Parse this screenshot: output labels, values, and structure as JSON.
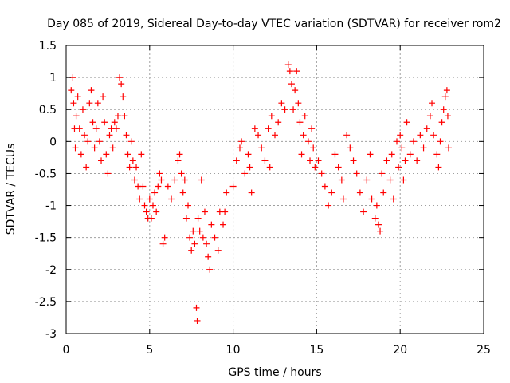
{
  "chart_data": {
    "type": "scatter",
    "title": "Day 085 of 2019, Sidereal Day-to-day VTEC variation (SDTVAR) for receiver rom2",
    "xlabel": "GPS time / hours",
    "ylabel": "SDTVAR / TECUs",
    "xlim": [
      0,
      25
    ],
    "ylim": [
      -3,
      1.5
    ],
    "xticks": [
      "0",
      "5",
      "10",
      "15",
      "20",
      "25"
    ],
    "yticks": [
      "1.5",
      "1",
      "0.5",
      "0",
      "-0.5",
      "-1",
      "-1.5",
      "-2",
      "-2.5",
      "-3"
    ],
    "grid": true,
    "marker": "+",
    "color": "#ff0000",
    "series": [
      {
        "name": "SDTVAR",
        "points": [
          [
            0.3,
            0.8
          ],
          [
            0.4,
            1.0
          ],
          [
            0.45,
            0.6
          ],
          [
            0.5,
            0.2
          ],
          [
            0.55,
            -0.1
          ],
          [
            0.6,
            0.4
          ],
          [
            0.7,
            0.7
          ],
          [
            0.8,
            0.2
          ],
          [
            0.9,
            -0.2
          ],
          [
            1.0,
            0.5
          ],
          [
            1.1,
            0.1
          ],
          [
            1.2,
            -0.4
          ],
          [
            1.3,
            0.0
          ],
          [
            1.4,
            0.6
          ],
          [
            1.5,
            0.8
          ],
          [
            1.6,
            0.3
          ],
          [
            1.7,
            -0.1
          ],
          [
            1.8,
            0.2
          ],
          [
            1.9,
            0.6
          ],
          [
            2.0,
            0.0
          ],
          [
            2.1,
            -0.3
          ],
          [
            2.2,
            0.7
          ],
          [
            2.3,
            0.3
          ],
          [
            2.4,
            -0.2
          ],
          [
            2.5,
            -0.5
          ],
          [
            2.6,
            0.1
          ],
          [
            2.7,
            0.2
          ],
          [
            2.8,
            -0.1
          ],
          [
            2.9,
            0.3
          ],
          [
            3.0,
            0.2
          ],
          [
            3.1,
            0.4
          ],
          [
            3.2,
            1.0
          ],
          [
            3.3,
            0.9
          ],
          [
            3.4,
            0.7
          ],
          [
            3.5,
            0.4
          ],
          [
            3.6,
            0.1
          ],
          [
            3.7,
            -0.2
          ],
          [
            3.8,
            -0.4
          ],
          [
            3.9,
            0.0
          ],
          [
            4.0,
            -0.3
          ],
          [
            4.1,
            -0.6
          ],
          [
            4.2,
            -0.4
          ],
          [
            4.3,
            -0.7
          ],
          [
            4.4,
            -0.9
          ],
          [
            4.5,
            -0.2
          ],
          [
            4.6,
            -0.7
          ],
          [
            4.7,
            -1.0
          ],
          [
            4.8,
            -1.1
          ],
          [
            4.9,
            -1.2
          ],
          [
            5.0,
            -0.9
          ],
          [
            5.1,
            -1.2
          ],
          [
            5.2,
            -1.0
          ],
          [
            5.3,
            -0.8
          ],
          [
            5.4,
            -1.1
          ],
          [
            5.5,
            -0.7
          ],
          [
            5.6,
            -0.5
          ],
          [
            5.7,
            -0.6
          ],
          [
            5.8,
            -1.6
          ],
          [
            5.9,
            -1.5
          ],
          [
            6.1,
            -0.7
          ],
          [
            6.3,
            -0.9
          ],
          [
            6.5,
            -0.6
          ],
          [
            6.7,
            -0.3
          ],
          [
            6.8,
            -0.2
          ],
          [
            6.9,
            -0.5
          ],
          [
            7.0,
            -0.8
          ],
          [
            7.1,
            -0.6
          ],
          [
            7.2,
            -1.2
          ],
          [
            7.3,
            -1.0
          ],
          [
            7.4,
            -1.5
          ],
          [
            7.5,
            -1.7
          ],
          [
            7.6,
            -1.4
          ],
          [
            7.7,
            -1.6
          ],
          [
            7.8,
            -2.6
          ],
          [
            7.85,
            -2.8
          ],
          [
            7.9,
            -1.2
          ],
          [
            8.0,
            -1.4
          ],
          [
            8.1,
            -0.6
          ],
          [
            8.2,
            -1.5
          ],
          [
            8.3,
            -1.1
          ],
          [
            8.4,
            -1.6
          ],
          [
            8.5,
            -1.8
          ],
          [
            8.6,
            -2.0
          ],
          [
            8.7,
            -1.3
          ],
          [
            8.9,
            -1.5
          ],
          [
            9.1,
            -1.7
          ],
          [
            9.2,
            -1.1
          ],
          [
            9.4,
            -1.3
          ],
          [
            9.5,
            -1.1
          ],
          [
            9.6,
            -0.8
          ],
          [
            10.0,
            -0.7
          ],
          [
            10.2,
            -0.3
          ],
          [
            10.4,
            -0.1
          ],
          [
            10.5,
            0.0
          ],
          [
            10.7,
            -0.5
          ],
          [
            10.9,
            -0.2
          ],
          [
            11.0,
            -0.4
          ],
          [
            11.1,
            -0.8
          ],
          [
            11.3,
            0.2
          ],
          [
            11.5,
            0.1
          ],
          [
            11.7,
            -0.1
          ],
          [
            11.9,
            -0.3
          ],
          [
            12.1,
            0.2
          ],
          [
            12.2,
            -0.4
          ],
          [
            12.3,
            0.4
          ],
          [
            12.5,
            0.1
          ],
          [
            12.7,
            0.3
          ],
          [
            12.9,
            0.6
          ],
          [
            13.1,
            0.5
          ],
          [
            13.3,
            1.2
          ],
          [
            13.4,
            1.1
          ],
          [
            13.5,
            0.9
          ],
          [
            13.6,
            0.5
          ],
          [
            13.7,
            0.8
          ],
          [
            13.8,
            1.1
          ],
          [
            13.9,
            0.6
          ],
          [
            14.0,
            0.3
          ],
          [
            14.1,
            -0.2
          ],
          [
            14.2,
            0.1
          ],
          [
            14.3,
            0.4
          ],
          [
            14.5,
            0.0
          ],
          [
            14.6,
            -0.3
          ],
          [
            14.7,
            0.2
          ],
          [
            14.8,
            -0.1
          ],
          [
            14.9,
            -0.4
          ],
          [
            15.1,
            -0.3
          ],
          [
            15.3,
            -0.5
          ],
          [
            15.5,
            -0.7
          ],
          [
            15.7,
            -1.0
          ],
          [
            15.9,
            -0.8
          ],
          [
            16.1,
            -0.2
          ],
          [
            16.3,
            -0.4
          ],
          [
            16.5,
            -0.6
          ],
          [
            16.6,
            -0.9
          ],
          [
            16.8,
            0.1
          ],
          [
            17.0,
            -0.1
          ],
          [
            17.2,
            -0.3
          ],
          [
            17.4,
            -0.5
          ],
          [
            17.6,
            -0.8
          ],
          [
            17.8,
            -1.1
          ],
          [
            18.0,
            -0.6
          ],
          [
            18.2,
            -0.2
          ],
          [
            18.3,
            -0.9
          ],
          [
            18.5,
            -1.2
          ],
          [
            18.6,
            -1.0
          ],
          [
            18.7,
            -1.3
          ],
          [
            18.8,
            -1.4
          ],
          [
            18.9,
            -0.5
          ],
          [
            19.0,
            -0.8
          ],
          [
            19.2,
            -0.3
          ],
          [
            19.4,
            -0.6
          ],
          [
            19.5,
            -0.2
          ],
          [
            19.6,
            -0.9
          ],
          [
            19.8,
            0.0
          ],
          [
            19.9,
            -0.4
          ],
          [
            20.0,
            0.1
          ],
          [
            20.1,
            -0.1
          ],
          [
            20.2,
            -0.6
          ],
          [
            20.3,
            -0.3
          ],
          [
            20.4,
            0.3
          ],
          [
            20.6,
            -0.2
          ],
          [
            20.8,
            0.0
          ],
          [
            21.0,
            -0.3
          ],
          [
            21.2,
            0.1
          ],
          [
            21.4,
            -0.1
          ],
          [
            21.6,
            0.2
          ],
          [
            21.8,
            0.4
          ],
          [
            21.9,
            0.6
          ],
          [
            22.0,
            0.1
          ],
          [
            22.2,
            -0.2
          ],
          [
            22.3,
            -0.4
          ],
          [
            22.4,
            0.0
          ],
          [
            22.5,
            0.3
          ],
          [
            22.6,
            0.5
          ],
          [
            22.7,
            0.7
          ],
          [
            22.8,
            0.8
          ],
          [
            22.85,
            0.4
          ],
          [
            22.9,
            -0.1
          ]
        ]
      }
    ]
  }
}
